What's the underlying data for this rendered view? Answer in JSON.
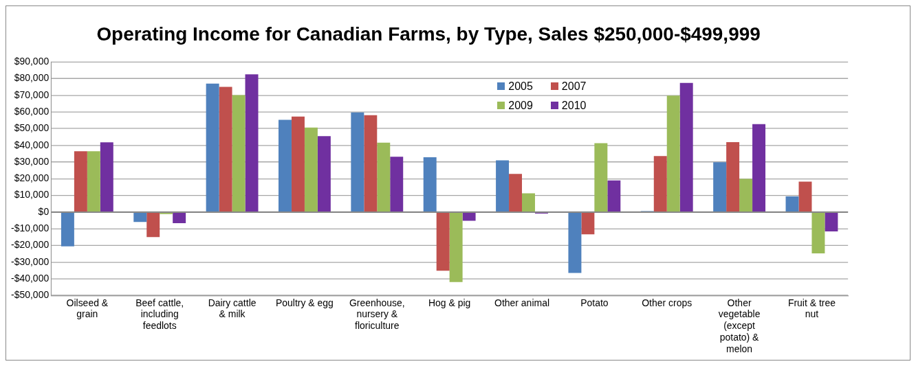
{
  "chart_data": {
    "type": "bar",
    "title": "Operating Income for Canadian Farms, by Type, Sales $250,000-$499,999",
    "categories": [
      "Oilseed & grain",
      "Beef cattle, including feedlots",
      "Dairy cattle & milk",
      "Poultry & egg",
      "Greenhouse, nursery & floriculture",
      "Hog & pig",
      "Other animal",
      "Potato",
      "Other crops",
      "Other vegetable (except potato) & melon",
      "Fruit & tree nut"
    ],
    "series": [
      {
        "name": "2005",
        "color": "#4f81bd",
        "values": [
          -20500,
          -5900,
          77000,
          55300,
          59800,
          32900,
          31000,
          -36500,
          600,
          29900,
          9400
        ]
      },
      {
        "name": "2007",
        "color": "#c0504d",
        "values": [
          36500,
          -15000,
          75100,
          57300,
          58100,
          -35100,
          22900,
          -13300,
          33600,
          42000,
          18300
        ]
      },
      {
        "name": "2009",
        "color": "#9bbb59",
        "values": [
          36500,
          -1200,
          70200,
          50700,
          41600,
          -41900,
          11300,
          41300,
          69800,
          19900,
          -24700
        ]
      },
      {
        "name": "2010",
        "color": "#7030a0",
        "values": [
          41800,
          -6600,
          82600,
          45600,
          33200,
          -5200,
          -900,
          19000,
          77500,
          52800,
          -11600
        ]
      }
    ],
    "ylim": [
      -50000,
      90000
    ],
    "yticks": [
      {
        "value": -50000,
        "label": "-$50,000"
      },
      {
        "value": -40000,
        "label": "-$40,000"
      },
      {
        "value": -30000,
        "label": "-$30,000"
      },
      {
        "value": -20000,
        "label": "-$20,000"
      },
      {
        "value": -10000,
        "label": "-$10,000"
      },
      {
        "value": 0,
        "label": "$0"
      },
      {
        "value": 10000,
        "label": "$10,000"
      },
      {
        "value": 20000,
        "label": "$20,000"
      },
      {
        "value": 30000,
        "label": "$30,000"
      },
      {
        "value": 40000,
        "label": "$40,000"
      },
      {
        "value": 50000,
        "label": "$50,000"
      },
      {
        "value": 60000,
        "label": "$60,000"
      },
      {
        "value": 70000,
        "label": "$70,000"
      },
      {
        "value": 80000,
        "label": "$80,000"
      },
      {
        "value": 90000,
        "label": "$90,000"
      }
    ],
    "grid": "y",
    "legend": "top"
  }
}
